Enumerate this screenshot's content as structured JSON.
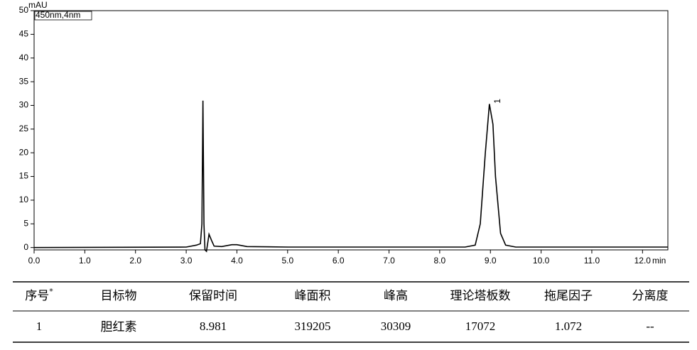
{
  "chart_data": {
    "type": "line",
    "y_label": "mAU",
    "x_label": "min",
    "annotations": [
      "450nm,4nm",
      "1"
    ],
    "x": [
      0,
      3.0,
      3.2,
      3.28,
      3.31,
      3.33,
      3.35,
      3.37,
      3.4,
      3.45,
      3.5,
      3.55,
      3.7,
      3.9,
      4.0,
      4.2,
      5.0,
      8.5,
      8.7,
      8.8,
      8.9,
      8.98,
      9.05,
      9.1,
      9.2,
      9.3,
      9.5,
      12.5
    ],
    "values": [
      0,
      0.1,
      0.5,
      0.8,
      5,
      31,
      5,
      -0.5,
      -0.8,
      2.8,
      1.5,
      0.3,
      0.2,
      0.6,
      0.6,
      0.2,
      0.1,
      0.1,
      0.5,
      5,
      20,
      30.3,
      26,
      15,
      3,
      0.5,
      0.1,
      0.1
    ],
    "color": "#000000",
    "xlim": [
      0,
      12.5
    ],
    "ylim": [
      -0.5,
      50
    ],
    "xticks": [
      {
        "value": 0,
        "label": "0.0"
      },
      {
        "value": 1,
        "label": "1.0"
      },
      {
        "value": 2,
        "label": "2.0"
      },
      {
        "value": 3,
        "label": "3.0"
      },
      {
        "value": 4,
        "label": "4.0"
      },
      {
        "value": 5,
        "label": "5.0"
      },
      {
        "value": 6,
        "label": "6.0"
      },
      {
        "value": 7,
        "label": "7.0"
      },
      {
        "value": 8,
        "label": "8.0"
      },
      {
        "value": 9,
        "label": "9.0"
      },
      {
        "value": 10,
        "label": "10.0"
      },
      {
        "value": 11,
        "label": "11.0"
      },
      {
        "value": 12,
        "label": "12.0"
      }
    ],
    "yticks": [
      0,
      5,
      10,
      15,
      20,
      25,
      30,
      35,
      40,
      45,
      50
    ],
    "peak_label_x": 8.98
  },
  "table": {
    "header": [
      {
        "text": "序号",
        "sup": "*"
      },
      {
        "text": "目标物"
      },
      {
        "text": "保留时间"
      },
      {
        "text": "峰面积"
      },
      {
        "text": "峰高"
      },
      {
        "text": "理论塔板数"
      },
      {
        "text": "拖尾因子"
      },
      {
        "text": "分离度"
      }
    ],
    "rows": [
      [
        1,
        "胆红素",
        8.981,
        319205,
        30309,
        17072,
        1.072,
        "--"
      ]
    ]
  }
}
